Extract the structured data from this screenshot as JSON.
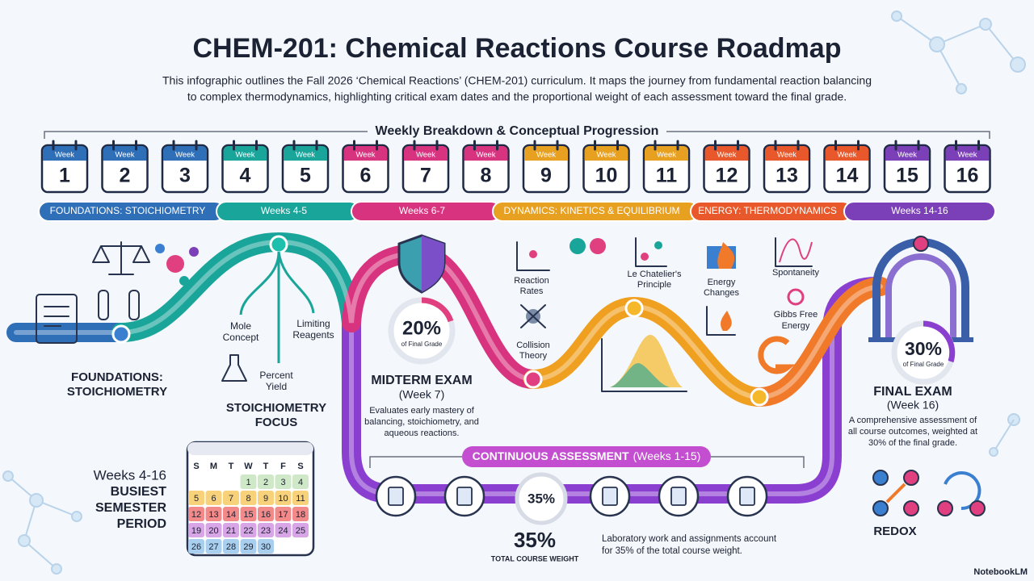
{
  "header": {
    "title": "CHEM-201: Chemical Reactions Course Roadmap",
    "description_lines": [
      "This infographic outlines the Fall 2026 ‘Chemical Reactions’ (CHEM-201) curriculum. It maps the journey from fundamental reaction balancing",
      "to complex thermodynamics, highlighting critical exam dates and the proportional weight of each assessment toward the final grade."
    ]
  },
  "weekly": {
    "heading": "Weekly Breakdown & Conceptual Progression",
    "week_label": "Week",
    "weeks": [
      1,
      2,
      3,
      4,
      5,
      6,
      7,
      8,
      9,
      10,
      11,
      12,
      13,
      14,
      15,
      16
    ]
  },
  "phases": [
    "FOUNDATIONS: STOICHIOMETRY",
    "Weeks 4-5",
    "Weeks 6-7",
    "DYNAMICS: KINETICS & EQUILIBRIUM",
    "ENERGY: THERMODYNAMICS",
    "Weeks 14-16"
  ],
  "foundations": {
    "label_lines": [
      "FOUNDATIONS:",
      "STOICHIOMETRY"
    ]
  },
  "stoichiometry": {
    "concepts": [
      [
        "Mole",
        "Concept"
      ],
      [
        "Limiting",
        "Reagents"
      ],
      [
        "Percent",
        "Yield"
      ]
    ],
    "label_lines": [
      "STOICHIOMETRY",
      "FOCUS"
    ]
  },
  "midterm": {
    "percent": "20%",
    "percent_caption": "of Final Grade",
    "title": "MIDTERM EXAM",
    "week": "(Week 7)",
    "description_lines": [
      "Evaluates early mastery of",
      "balancing, stoichiometry, and",
      "aqueous reactions."
    ]
  },
  "kinetics": {
    "topics": [
      [
        "Reaction",
        "Rates"
      ],
      [
        "Collision",
        "Theory"
      ],
      [
        "Le Chatelier's",
        "Principle"
      ]
    ]
  },
  "thermodynamics": {
    "topics": [
      [
        "Energy",
        "Changes"
      ],
      [
        "Spontaneity"
      ],
      [
        "Gibbs Free",
        "Energy"
      ]
    ]
  },
  "final": {
    "percent": "30%",
    "percent_caption": "of Final Grade",
    "title": "FINAL EXAM",
    "week": "(Week 16)",
    "description_lines": [
      "A comprehensive assessment of",
      "all course outcomes, weighted at",
      "30% of the final grade."
    ]
  },
  "continuous": {
    "banner": "CONTINUOUS ASSESSMENT",
    "banner_weeks": "(Weeks 1-15)",
    "center_percent": "35%",
    "weight": "35%",
    "weight_caption": "TOTAL COURSE WEIGHT",
    "description_lines": [
      "Laboratory work and assignments account",
      "for 35% of the total course weight."
    ]
  },
  "busiest": {
    "weeks": "Weeks 4-16",
    "label_lines": [
      "BUSIEST",
      "SEMESTER",
      "PERIOD"
    ],
    "weekdays": [
      "S",
      "M",
      "T",
      "W",
      "T",
      "F",
      "S"
    ],
    "days": [
      1,
      2,
      3,
      4,
      5,
      6,
      7,
      8,
      9,
      10,
      11,
      12,
      13,
      14,
      15,
      16,
      17,
      18,
      19,
      20,
      21,
      22,
      23,
      24,
      25,
      26,
      27,
      28,
      29,
      30
    ]
  },
  "redox": {
    "label": "REDOX"
  },
  "brand": "NotebookLM"
}
